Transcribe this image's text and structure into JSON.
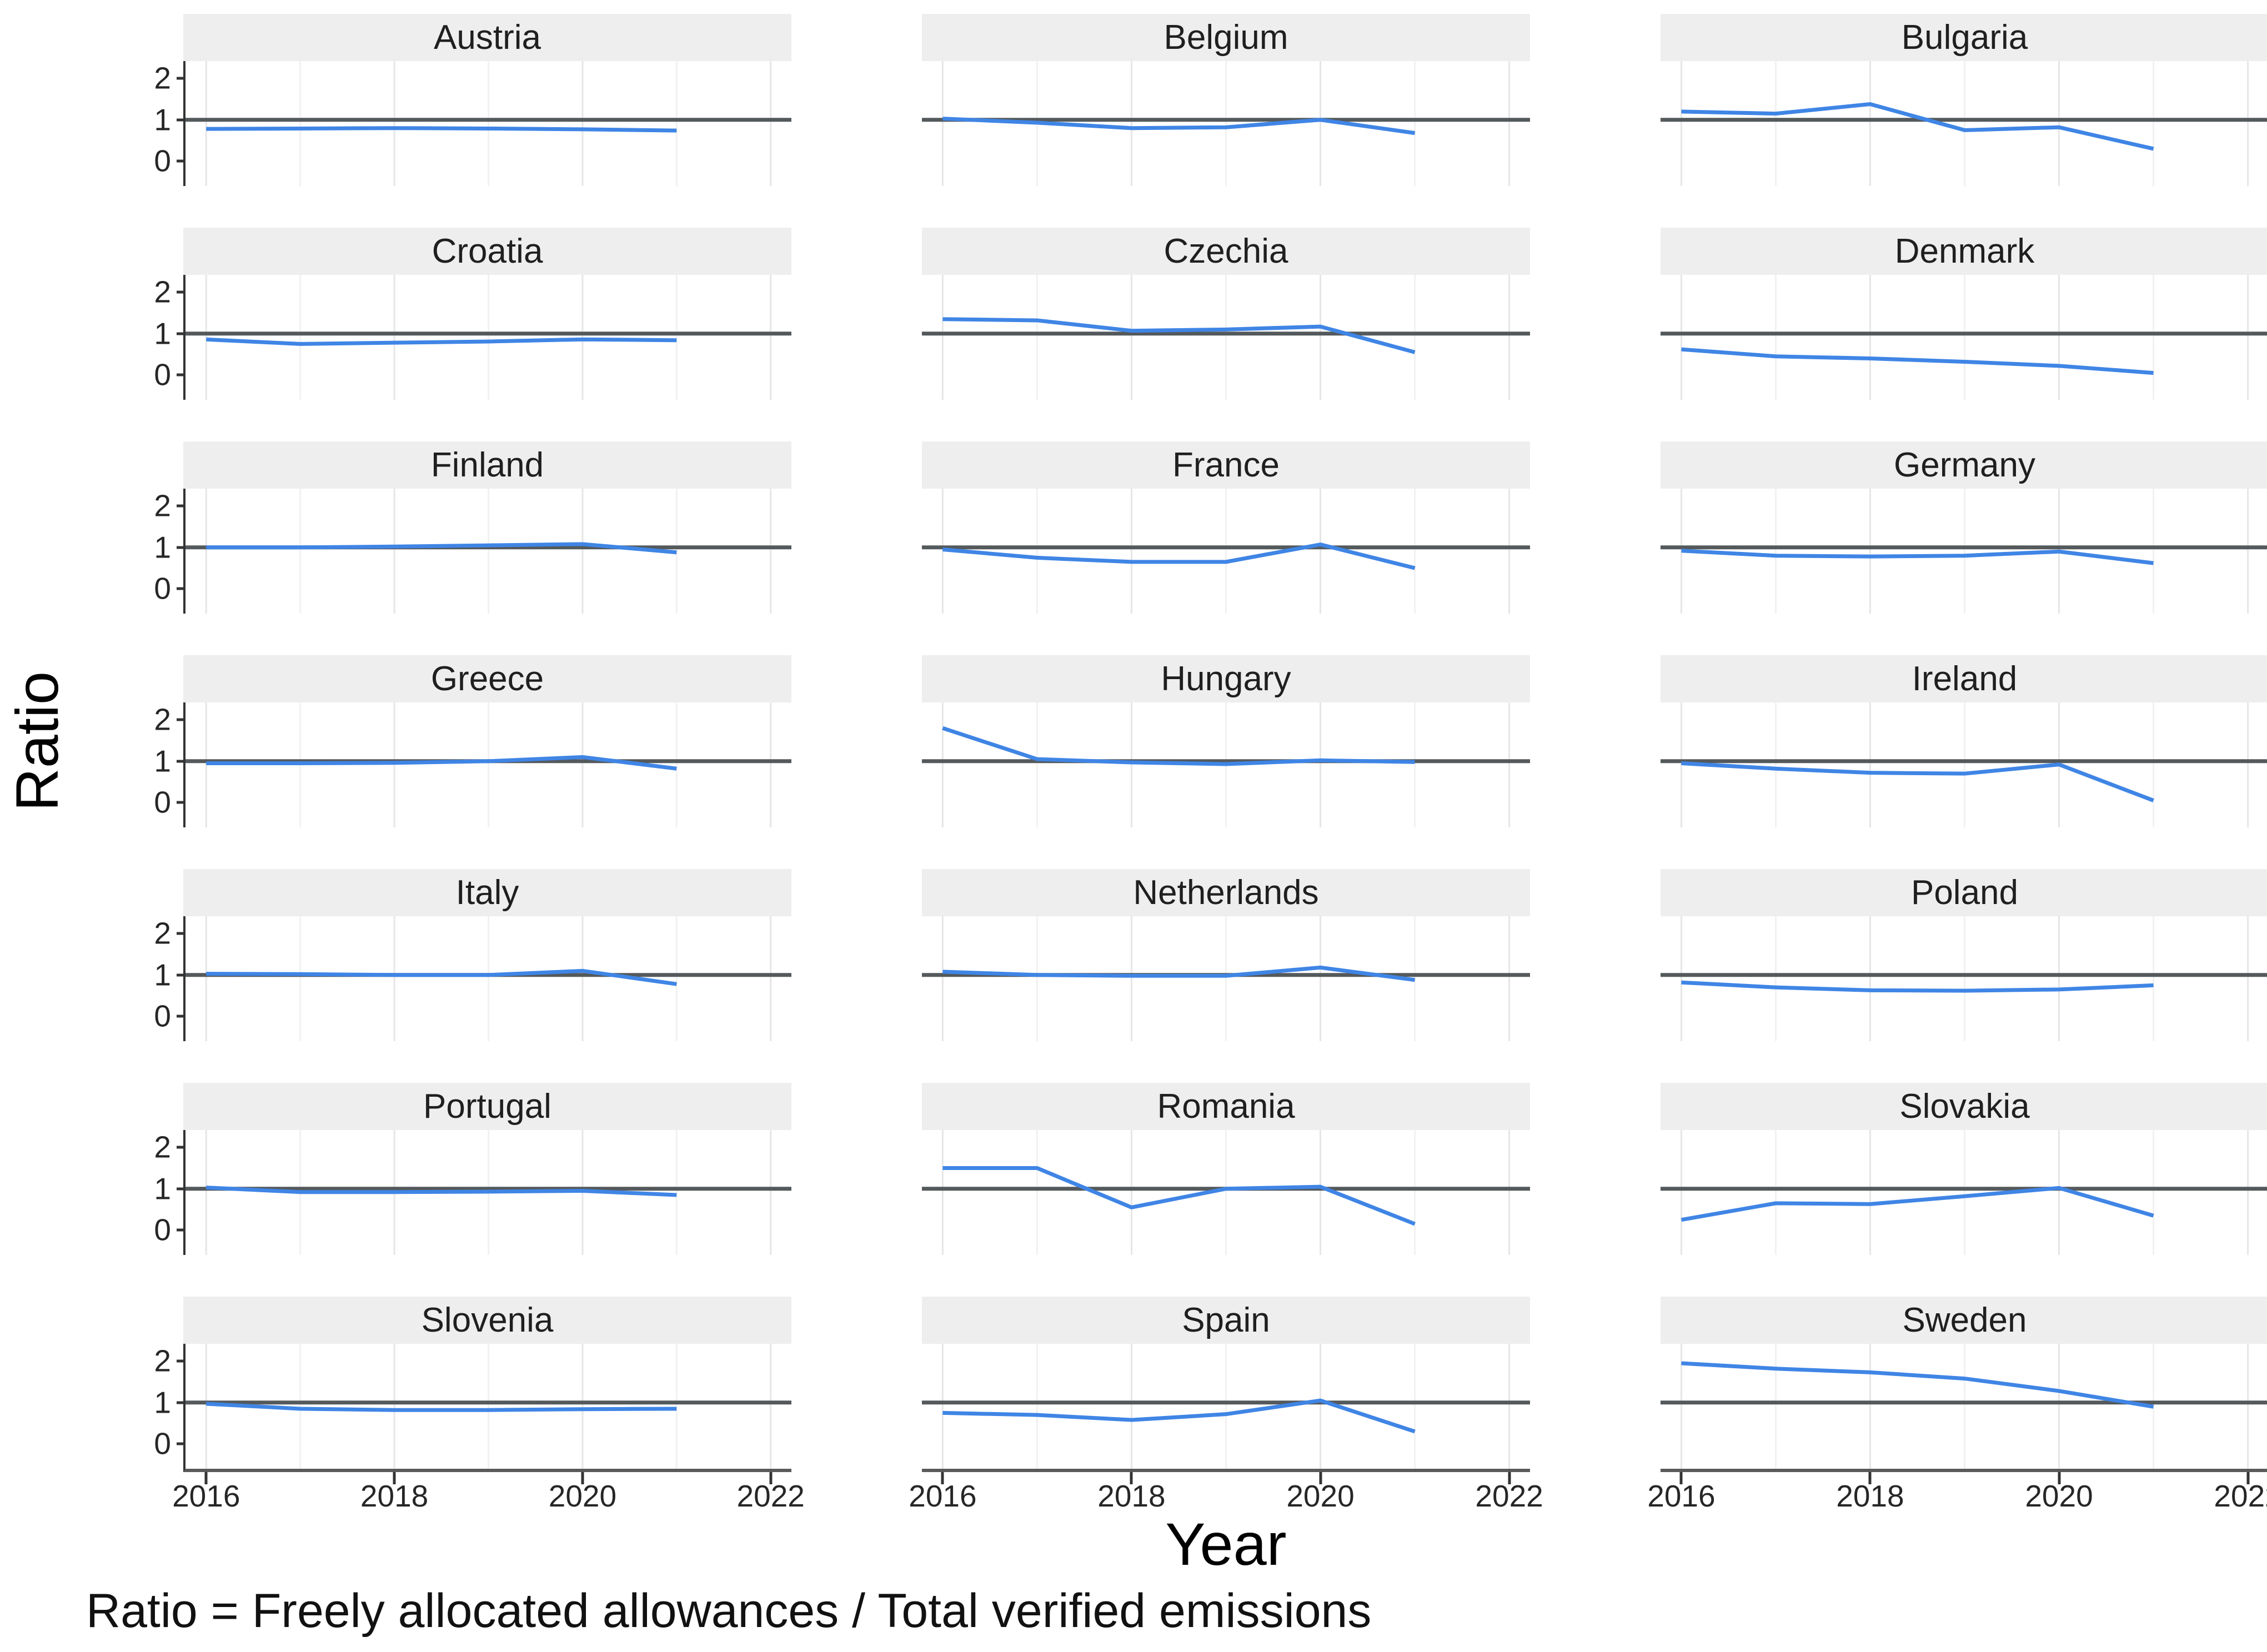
{
  "figure": {
    "y_axis_title": "Ratio",
    "x_axis_title": "Year",
    "caption": "Ratio = Freely allocated allowances / Total verified emissions"
  },
  "colors": {
    "line": "#3f85e5",
    "reference_line": "#54595c",
    "strip_bg": "#eeeeee",
    "grid_major": "#e6e6e6",
    "grid_minor": "#f1f1f1",
    "axis": "#333333",
    "bottom_axis": "#5a5a5a"
  },
  "chart_data": {
    "type": "line",
    "facet_grid": {
      "rows": 7,
      "cols": 3
    },
    "x": [
      2016,
      2017,
      2018,
      2019,
      2020,
      2021
    ],
    "xlim": [
      2015.78,
      2022.22
    ],
    "ylim": [
      -0.6,
      2.42
    ],
    "x_ticks": [
      2016,
      2018,
      2020,
      2022
    ],
    "y_ticks": [
      2,
      1,
      0
    ],
    "grid_years": [
      2016,
      2017,
      2018,
      2019,
      2020,
      2021,
      2022
    ],
    "reference_line_y": 1,
    "xlabel": "Year",
    "ylabel": "Ratio",
    "facets": [
      {
        "label": "Austria",
        "values": [
          0.78,
          0.79,
          0.8,
          0.79,
          0.77,
          0.74
        ]
      },
      {
        "label": "Belgium",
        "values": [
          1.03,
          0.93,
          0.8,
          0.82,
          1.0,
          0.68
        ]
      },
      {
        "label": "Bulgaria",
        "values": [
          1.2,
          1.15,
          1.38,
          0.75,
          0.82,
          0.3
        ]
      },
      {
        "label": "Croatia",
        "values": [
          0.86,
          0.75,
          0.78,
          0.81,
          0.86,
          0.84
        ]
      },
      {
        "label": "Czechia",
        "values": [
          1.35,
          1.32,
          1.07,
          1.1,
          1.17,
          0.55
        ]
      },
      {
        "label": "Denmark",
        "values": [
          0.62,
          0.45,
          0.4,
          0.32,
          0.22,
          0.05
        ]
      },
      {
        "label": "Finland",
        "values": [
          1.0,
          1.0,
          1.02,
          1.05,
          1.08,
          0.88
        ]
      },
      {
        "label": "France",
        "values": [
          0.95,
          0.75,
          0.65,
          0.65,
          1.07,
          0.5
        ]
      },
      {
        "label": "Germany",
        "values": [
          0.92,
          0.8,
          0.78,
          0.8,
          0.9,
          0.62
        ]
      },
      {
        "label": "Greece",
        "values": [
          0.95,
          0.95,
          0.96,
          1.0,
          1.1,
          0.82
        ]
      },
      {
        "label": "Hungary",
        "values": [
          1.8,
          1.05,
          0.97,
          0.93,
          1.02,
          0.98
        ]
      },
      {
        "label": "Ireland",
        "values": [
          0.95,
          0.82,
          0.72,
          0.7,
          0.92,
          0.05
        ]
      },
      {
        "label": "Italy",
        "values": [
          1.03,
          1.02,
          1.0,
          1.0,
          1.1,
          0.78
        ]
      },
      {
        "label": "Netherlands",
        "values": [
          1.08,
          1.0,
          0.98,
          0.98,
          1.18,
          0.88
        ]
      },
      {
        "label": "Poland",
        "values": [
          0.82,
          0.7,
          0.63,
          0.62,
          0.65,
          0.75
        ]
      },
      {
        "label": "Portugal",
        "values": [
          1.03,
          0.92,
          0.92,
          0.93,
          0.95,
          0.85
        ]
      },
      {
        "label": "Romania",
        "values": [
          1.5,
          1.5,
          0.55,
          1.0,
          1.05,
          0.15
        ]
      },
      {
        "label": "Slovakia",
        "values": [
          0.25,
          0.65,
          0.63,
          0.82,
          1.02,
          0.35
        ]
      },
      {
        "label": "Slovenia",
        "values": [
          0.97,
          0.85,
          0.82,
          0.82,
          0.84,
          0.85
        ]
      },
      {
        "label": "Spain",
        "values": [
          0.75,
          0.7,
          0.58,
          0.72,
          1.05,
          0.3
        ]
      },
      {
        "label": "Sweden",
        "values": [
          1.95,
          1.82,
          1.73,
          1.58,
          1.28,
          0.9
        ]
      }
    ]
  }
}
